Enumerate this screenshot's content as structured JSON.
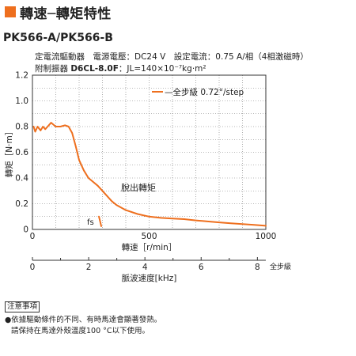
{
  "header": {
    "title": "轉速─轉矩特性",
    "accent_color": "#ee6f1e"
  },
  "model": "PK566-A/PK566-B",
  "spec": {
    "line1": "定電流驅動器　電源電壓：DC24 V　設定電流：0.75 A/相（4相激磁時）",
    "line2_prefix": "附制振器 ",
    "line2_bold": "D6CL-8.0F",
    "line2_suffix": "：JL=140×10⁻⁷kg·m²"
  },
  "chart_data": {
    "type": "line",
    "ylabel": "轉矩［N·m］",
    "xlabel": "轉速［r/min］",
    "x2label": "脈波速度[kHz]",
    "x2unit": "全步級",
    "xlim": [
      0,
      1000
    ],
    "ylim": [
      0,
      1.2
    ],
    "x2lim": [
      0,
      8.3
    ],
    "yticks": [
      "0",
      "0.2",
      "0.4",
      "0.6",
      "0.8",
      "1.0",
      "1.2"
    ],
    "xticks": [
      "0",
      "500",
      "1000"
    ],
    "x2ticks": [
      "0",
      "2",
      "4",
      "6",
      "8"
    ],
    "grid": true,
    "legend": "—全步級 0.72°/step",
    "curve_label": "脫出轉矩",
    "fs_label": "fs",
    "series_color": "#ee6f1e",
    "series": [
      {
        "name": "全步級 0.72°/step",
        "x": [
          5,
          12,
          22,
          35,
          45,
          55,
          65,
          80,
          100,
          120,
          140,
          155,
          170,
          185,
          200,
          220,
          240,
          260,
          280,
          300,
          320,
          340,
          360,
          380,
          400,
          450,
          500,
          550,
          600,
          650,
          700,
          750,
          800,
          850,
          900,
          950,
          1000
        ],
        "y": [
          0.8,
          0.76,
          0.8,
          0.77,
          0.8,
          0.78,
          0.8,
          0.83,
          0.8,
          0.8,
          0.81,
          0.8,
          0.75,
          0.65,
          0.54,
          0.46,
          0.4,
          0.37,
          0.34,
          0.3,
          0.26,
          0.22,
          0.19,
          0.17,
          0.15,
          0.12,
          0.1,
          0.09,
          0.085,
          0.08,
          0.07,
          0.062,
          0.055,
          0.048,
          0.042,
          0.035,
          0.028
        ]
      }
    ],
    "fs_points": {
      "x": [
        285,
        295
      ],
      "y": [
        0.1,
        0.025
      ]
    }
  },
  "notes": {
    "title": "注意事項",
    "line1": "●依據驅動條件的不同、有時馬達會顯著發熱。",
    "line2": "請保持在馬達外殼溫度100 °C以下使用。"
  }
}
